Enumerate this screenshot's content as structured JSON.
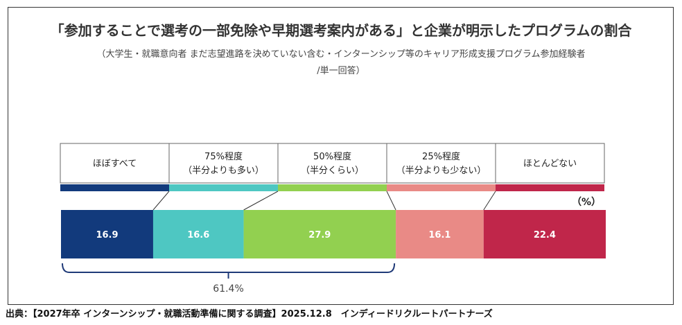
{
  "title": "「参加することで選考の一部免除や早期選考案内がある」と企業が明示したプログラムの割合",
  "subtitle": {
    "line1": "（大学生・就職意向者 まだ志望進路を決めていない含む・インターンシップ等のキャリア形成支援プログラム参加経験者",
    "line2": "/単一回答）"
  },
  "unit": "（%）",
  "source": "出典：【2027年卒 インターンシップ・就職活動準備に関する調査】2025.12.8　インディードリクルートパートナーズ",
  "chart_data": {
    "type": "bar",
    "orientation": "horizontal-stacked",
    "categories": [
      {
        "line1": "ほぼすべて",
        "line2": "",
        "value": 16.9,
        "color": "#123a7c"
      },
      {
        "line1": "75%程度",
        "line2": "（半分よりも多い）",
        "value": 16.6,
        "color": "#4ec7c2"
      },
      {
        "line1": "50%程度",
        "line2": "（半分くらい）",
        "value": 27.9,
        "color": "#92d050"
      },
      {
        "line1": "25%程度",
        "line2": "（半分よりも少ない）",
        "value": 16.1,
        "color": "#e98a86"
      },
      {
        "line1": "ほとんどない",
        "line2": "",
        "value": 22.4,
        "color": "#c0264a"
      }
    ],
    "bracket": {
      "label": "61.4%",
      "value": 61.4,
      "spans": [
        0,
        2
      ]
    }
  }
}
